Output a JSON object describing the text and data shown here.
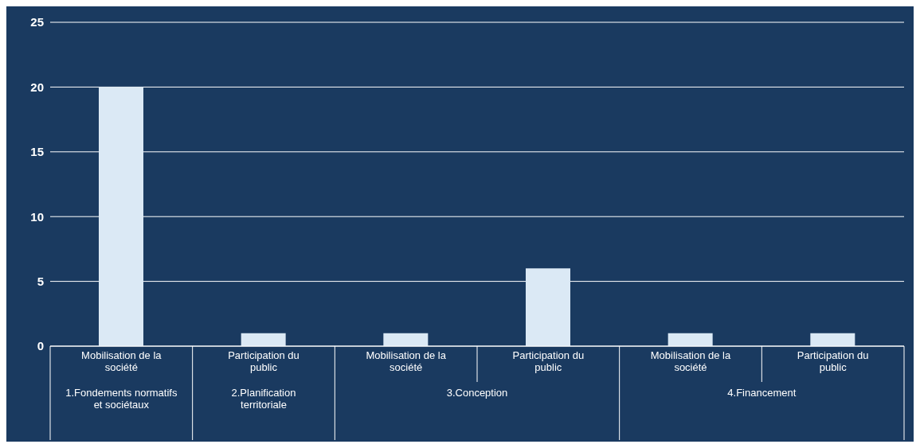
{
  "chart_data": {
    "type": "bar",
    "categories": [
      "Mobilisation de la société",
      "Participation du public",
      "Mobilisation de la société",
      "Participation du public",
      "Mobilisation de la société",
      "Participation du public"
    ],
    "values": [
      20,
      1,
      1,
      6,
      1,
      1
    ],
    "color": "#dbe9f5",
    "ylim": [
      0,
      25
    ],
    "yticks": [
      0,
      5,
      10,
      15,
      20,
      25
    ],
    "grid": "y",
    "annotations": [
      "1.Fondements normatifs et sociétaux",
      "2.Planification territoriale",
      "3.Conception",
      "4.Financement"
    ]
  }
}
